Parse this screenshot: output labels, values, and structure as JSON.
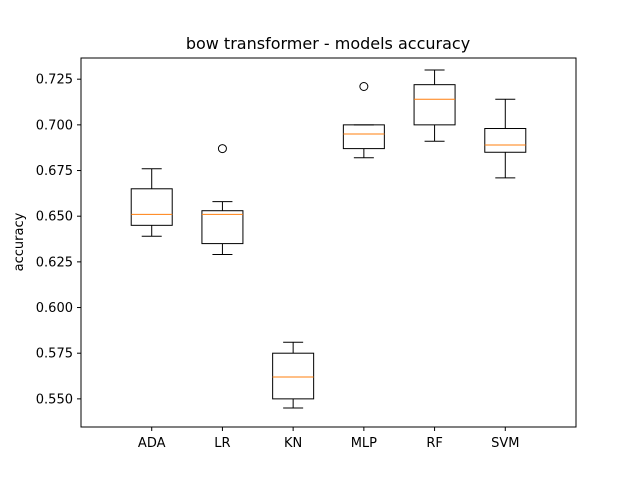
{
  "chart_data": {
    "type": "box",
    "title": "bow transformer - models accuracy",
    "xlabel": "",
    "ylabel": "accuracy",
    "ylim": [
      0.5346,
      0.7366
    ],
    "yticks": [
      "0.550",
      "0.575",
      "0.600",
      "0.625",
      "0.650",
      "0.675",
      "0.700",
      "0.725"
    ],
    "grid": false,
    "categories": [
      "ADA",
      "LR",
      "KN",
      "MLP",
      "RF",
      "SVM"
    ],
    "boxes": [
      {
        "category": "ADA",
        "whislo": 0.639,
        "q1": 0.645,
        "med": 0.651,
        "q3": 0.665,
        "whishi": 0.676,
        "fliers": []
      },
      {
        "category": "LR",
        "whislo": 0.629,
        "q1": 0.635,
        "med": 0.651,
        "q3": 0.653,
        "whishi": 0.658,
        "fliers": [
          0.687
        ]
      },
      {
        "category": "KN",
        "whislo": 0.545,
        "q1": 0.55,
        "med": 0.562,
        "q3": 0.575,
        "whishi": 0.581,
        "fliers": []
      },
      {
        "category": "MLP",
        "whislo": 0.682,
        "q1": 0.687,
        "med": 0.695,
        "q3": 0.7,
        "whishi": 0.7,
        "fliers": [
          0.721
        ]
      },
      {
        "category": "RF",
        "whislo": 0.691,
        "q1": 0.7,
        "med": 0.714,
        "q3": 0.722,
        "whishi": 0.73,
        "fliers": []
      },
      {
        "category": "SVM",
        "whislo": 0.671,
        "q1": 0.685,
        "med": 0.689,
        "q3": 0.698,
        "whishi": 0.714,
        "fliers": []
      }
    ],
    "colors": {
      "box": "#000000",
      "median": "#ff7f0e",
      "flier": "#000000"
    }
  }
}
